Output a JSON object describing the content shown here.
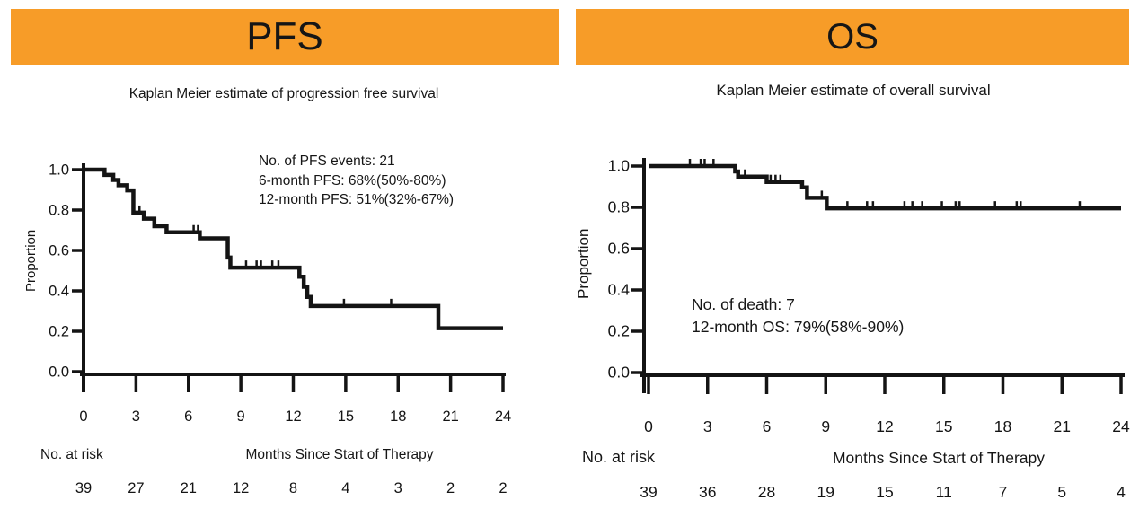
{
  "page": {
    "background": "#FFFFFF",
    "accent_orange": "#F79C28",
    "line_color": "#141414"
  },
  "chart_data": [
    {
      "id": "pfs",
      "type": "line",
      "panel_title": "PFS",
      "subtitle": "Kaplan Meier estimate of progression free survival",
      "xlabel": "Months Since Start of Therapy",
      "ylabel": "Proportion",
      "xlim": [
        0,
        24
      ],
      "ylim": [
        0,
        1
      ],
      "xticks": [
        0,
        3,
        6,
        9,
        12,
        15,
        18,
        21,
        24
      ],
      "yticks": [
        0,
        0.2,
        0.4,
        0.6,
        0.8,
        1
      ],
      "grid": false,
      "legend": "none",
      "annotation_lines": [
        "No. of PFS events: 21",
        "6-month PFS: 68%(50%-80%)",
        "12-month PFS: 51%(32%-67%)"
      ],
      "km_steps": [
        [
          0,
          1.0
        ],
        [
          1.2,
          0.974
        ],
        [
          1.7,
          0.949
        ],
        [
          2.0,
          0.923
        ],
        [
          2.5,
          0.897
        ],
        [
          2.85,
          0.787
        ],
        [
          3.45,
          0.757
        ],
        [
          4.05,
          0.72
        ],
        [
          4.75,
          0.69
        ],
        [
          6.65,
          0.66
        ],
        [
          8.25,
          0.565
        ],
        [
          8.4,
          0.515
        ],
        [
          12.35,
          0.47
        ],
        [
          12.6,
          0.42
        ],
        [
          12.8,
          0.37
        ],
        [
          13.0,
          0.325
        ],
        [
          20.3,
          0.215
        ],
        [
          24,
          0.215
        ]
      ],
      "censor_marks": [
        [
          3.2,
          0.787
        ],
        [
          6.3,
          0.69
        ],
        [
          6.55,
          0.69
        ],
        [
          9.3,
          0.515
        ],
        [
          9.9,
          0.515
        ],
        [
          10.15,
          0.515
        ],
        [
          10.8,
          0.515
        ],
        [
          11.15,
          0.515
        ],
        [
          14.9,
          0.325
        ],
        [
          17.6,
          0.325
        ]
      ],
      "risk_label": "No. at risk",
      "risk_counts": [
        39,
        27,
        21,
        12,
        8,
        4,
        3,
        2,
        2
      ]
    },
    {
      "id": "os",
      "type": "line",
      "panel_title": "OS",
      "subtitle": "Kaplan Meier estimate of overall survival",
      "xlabel": "Months Since Start of Therapy",
      "ylabel": "Proportion",
      "xlim": [
        0,
        24
      ],
      "ylim": [
        0,
        1
      ],
      "xticks": [
        0,
        3,
        6,
        9,
        12,
        15,
        18,
        21,
        24
      ],
      "yticks": [
        0,
        0.2,
        0.4,
        0.6,
        0.8,
        1
      ],
      "grid": false,
      "legend": "none",
      "annotation_lines": [
        "No. of death: 7",
        "12-month OS: 79%(58%-90%)"
      ],
      "km_steps": [
        [
          0,
          1.0
        ],
        [
          4.4,
          0.974
        ],
        [
          4.55,
          0.949
        ],
        [
          6.0,
          0.923
        ],
        [
          7.8,
          0.897
        ],
        [
          8.05,
          0.846
        ],
        [
          9.05,
          0.795
        ],
        [
          24,
          0.795
        ]
      ],
      "censor_marks": [
        [
          2.1,
          1.0
        ],
        [
          2.65,
          1.0
        ],
        [
          2.85,
          1.0
        ],
        [
          3.3,
          1.0
        ],
        [
          4.9,
          0.949
        ],
        [
          6.2,
          0.923
        ],
        [
          6.45,
          0.923
        ],
        [
          6.7,
          0.923
        ],
        [
          8.8,
          0.846
        ],
        [
          10.1,
          0.795
        ],
        [
          11.1,
          0.795
        ],
        [
          11.4,
          0.795
        ],
        [
          13.0,
          0.795
        ],
        [
          13.4,
          0.795
        ],
        [
          13.9,
          0.795
        ],
        [
          14.9,
          0.795
        ],
        [
          15.6,
          0.795
        ],
        [
          15.8,
          0.795
        ],
        [
          17.6,
          0.795
        ],
        [
          18.7,
          0.795
        ],
        [
          18.9,
          0.795
        ],
        [
          21.9,
          0.795
        ]
      ],
      "risk_label": "No. at risk",
      "risk_counts": [
        39,
        36,
        28,
        19,
        15,
        11,
        7,
        5,
        4
      ]
    }
  ]
}
